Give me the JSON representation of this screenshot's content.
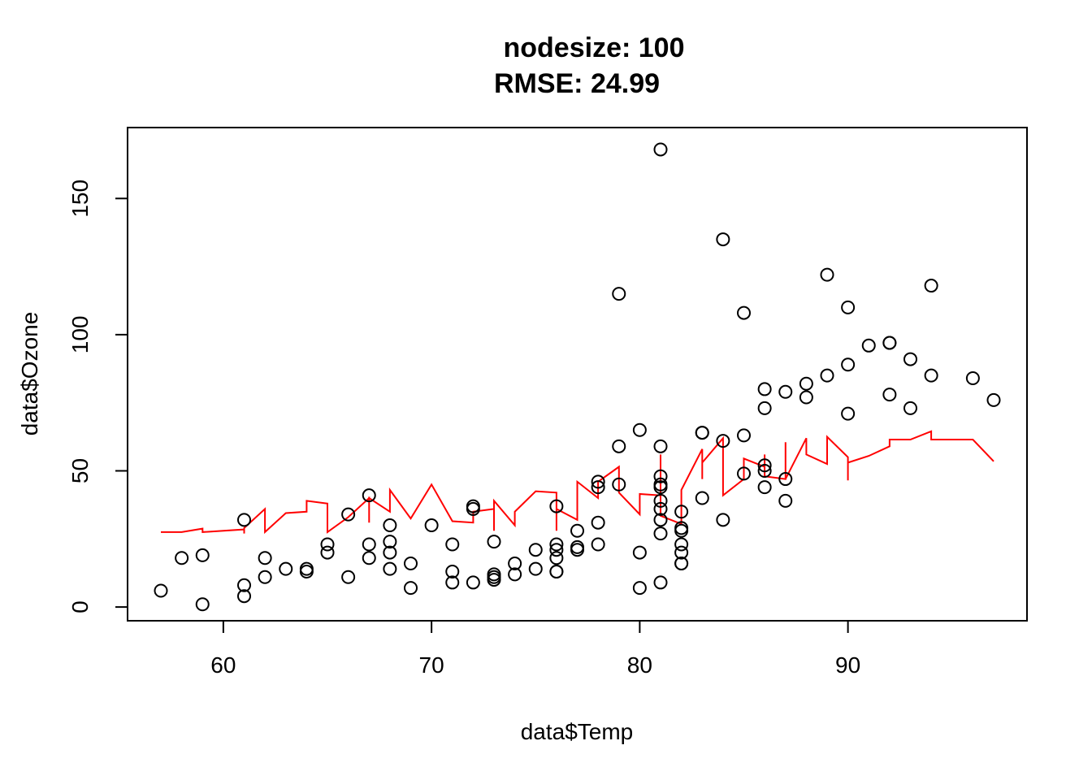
{
  "chart_data": {
    "type": "scatter",
    "title_line1": "nodesize: 100",
    "title_line2": "RMSE: 24.99",
    "xlabel": "data$Temp",
    "ylabel": "data$Ozone",
    "xlim": [
      55.4,
      98.6
    ],
    "ylim": [
      -5.04,
      176.04
    ],
    "xticks": [
      60,
      70,
      80,
      90
    ],
    "yticks": [
      0,
      50,
      100,
      150
    ],
    "point_color": "#000000",
    "line_color": "#ff0000",
    "points": [
      [
        57,
        6
      ],
      [
        58,
        18
      ],
      [
        59,
        19
      ],
      [
        59,
        1
      ],
      [
        61,
        32
      ],
      [
        61,
        8
      ],
      [
        61,
        4
      ],
      [
        62,
        18
      ],
      [
        62,
        11
      ],
      [
        63,
        14
      ],
      [
        64,
        14
      ],
      [
        64,
        13
      ],
      [
        65,
        23
      ],
      [
        65,
        20
      ],
      [
        66,
        34
      ],
      [
        66,
        11
      ],
      [
        67,
        41
      ],
      [
        67,
        23
      ],
      [
        67,
        18
      ],
      [
        68,
        30
      ],
      [
        68,
        24
      ],
      [
        68,
        20
      ],
      [
        68,
        14
      ],
      [
        69,
        16
      ],
      [
        69,
        7
      ],
      [
        70,
        30
      ],
      [
        71,
        23
      ],
      [
        71,
        13
      ],
      [
        71,
        9
      ],
      [
        72,
        37
      ],
      [
        72,
        36
      ],
      [
        72,
        9
      ],
      [
        73,
        24
      ],
      [
        73,
        12
      ],
      [
        73,
        11
      ],
      [
        73,
        10
      ],
      [
        74,
        16
      ],
      [
        74,
        12
      ],
      [
        75,
        21
      ],
      [
        75,
        14
      ],
      [
        76,
        37
      ],
      [
        76,
        23
      ],
      [
        76,
        21
      ],
      [
        76,
        18
      ],
      [
        76,
        13
      ],
      [
        76,
        13
      ],
      [
        77,
        28
      ],
      [
        77,
        22
      ],
      [
        77,
        21
      ],
      [
        78,
        46
      ],
      [
        78,
        44
      ],
      [
        78,
        31
      ],
      [
        78,
        23
      ],
      [
        79,
        115
      ],
      [
        79,
        59
      ],
      [
        79,
        45
      ],
      [
        80,
        65
      ],
      [
        80,
        20
      ],
      [
        80,
        7
      ],
      [
        81,
        168
      ],
      [
        81,
        59
      ],
      [
        81,
        48
      ],
      [
        81,
        45
      ],
      [
        81,
        44
      ],
      [
        81,
        39
      ],
      [
        81,
        36
      ],
      [
        81,
        32
      ],
      [
        81,
        27
      ],
      [
        81,
        9
      ],
      [
        82,
        35
      ],
      [
        82,
        29
      ],
      [
        82,
        28
      ],
      [
        82,
        23
      ],
      [
        82,
        20
      ],
      [
        82,
        16
      ],
      [
        82,
        16
      ],
      [
        83,
        64
      ],
      [
        83,
        64
      ],
      [
        83,
        40
      ],
      [
        84,
        135
      ],
      [
        84,
        61
      ],
      [
        84,
        32
      ],
      [
        85,
        108
      ],
      [
        85,
        63
      ],
      [
        85,
        49
      ],
      [
        86,
        80
      ],
      [
        86,
        73
      ],
      [
        86,
        52
      ],
      [
        86,
        50
      ],
      [
        86,
        44
      ],
      [
        87,
        79
      ],
      [
        87,
        47
      ],
      [
        87,
        39
      ],
      [
        88,
        82
      ],
      [
        88,
        77
      ],
      [
        89,
        122
      ],
      [
        89,
        85
      ],
      [
        90,
        110
      ],
      [
        90,
        89
      ],
      [
        90,
        71
      ],
      [
        91,
        96
      ],
      [
        92,
        97
      ],
      [
        92,
        97
      ],
      [
        92,
        78
      ],
      [
        93,
        91
      ],
      [
        93,
        73
      ],
      [
        94,
        118
      ],
      [
        94,
        85
      ],
      [
        96,
        84
      ],
      [
        97,
        76
      ]
    ],
    "prediction_line": [
      [
        57,
        27.5
      ],
      [
        58,
        27.5
      ],
      [
        59,
        28.8
      ],
      [
        59,
        27.5
      ],
      [
        61,
        28.5
      ],
      [
        61,
        27
      ],
      [
        61,
        29
      ],
      [
        62,
        36
      ],
      [
        62,
        27.5
      ],
      [
        63,
        34.5
      ],
      [
        64,
        35
      ],
      [
        64,
        39
      ],
      [
        65,
        38
      ],
      [
        65,
        27.5
      ],
      [
        66,
        33
      ],
      [
        67,
        40
      ],
      [
        67,
        31
      ],
      [
        67,
        40
      ],
      [
        68,
        35
      ],
      [
        68,
        43
      ],
      [
        69,
        32.5
      ],
      [
        70,
        45
      ],
      [
        71,
        31.5
      ],
      [
        72,
        31
      ],
      [
        72,
        35
      ],
      [
        73,
        36
      ],
      [
        73,
        28
      ],
      [
        73,
        39
      ],
      [
        74,
        30
      ],
      [
        74,
        35
      ],
      [
        75,
        42.5
      ],
      [
        76,
        42
      ],
      [
        76,
        28
      ],
      [
        76,
        36
      ],
      [
        77,
        32
      ],
      [
        77,
        46
      ],
      [
        78,
        40
      ],
      [
        78,
        46
      ],
      [
        79,
        51.5
      ],
      [
        79,
        42
      ],
      [
        80,
        34
      ],
      [
        80,
        41.5
      ],
      [
        81,
        41
      ],
      [
        81,
        56
      ],
      [
        81,
        33.5
      ],
      [
        82,
        30.5
      ],
      [
        82,
        43
      ],
      [
        83,
        58
      ],
      [
        83,
        47
      ],
      [
        83,
        53
      ],
      [
        84,
        62
      ],
      [
        84,
        41
      ],
      [
        85,
        47
      ],
      [
        85,
        54.5
      ],
      [
        86,
        51.5
      ],
      [
        86,
        56
      ],
      [
        86,
        48
      ],
      [
        87,
        47
      ],
      [
        87,
        60.5
      ],
      [
        87,
        47
      ],
      [
        88,
        62
      ],
      [
        88,
        56
      ],
      [
        89,
        52.5
      ],
      [
        89,
        62.5
      ],
      [
        90,
        55
      ],
      [
        90,
        46.5
      ],
      [
        90,
        53
      ],
      [
        91,
        55.5
      ],
      [
        92,
        59
      ],
      [
        92,
        61.5
      ],
      [
        93,
        61.5
      ],
      [
        94,
        64.5
      ],
      [
        94,
        61.5
      ],
      [
        96,
        61.5
      ],
      [
        97,
        53.5
      ]
    ]
  }
}
